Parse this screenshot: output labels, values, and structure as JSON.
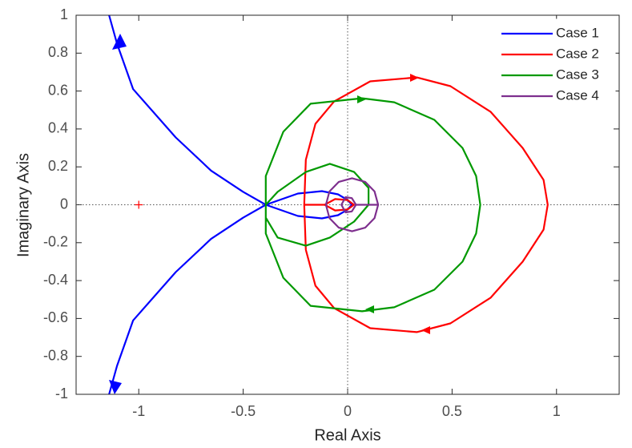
{
  "chart_data": {
    "type": "line",
    "xlabel": "Real Axis",
    "ylabel": "Imaginary Axis",
    "xlim": [
      -1.3,
      1.3
    ],
    "ylim": [
      -1,
      1
    ],
    "xticks": [
      -1,
      -0.5,
      0,
      0.5,
      1
    ],
    "yticks": [
      -1,
      -0.8,
      -0.6,
      -0.4,
      -0.2,
      0,
      0.2,
      0.4,
      0.6,
      0.8,
      1
    ],
    "legend": "top-right",
    "critical_point": {
      "x": -1,
      "y": 0,
      "color": "#ff0000"
    },
    "series": [
      {
        "name": "Case 1",
        "color": "#0000ff",
        "x": [
          -1.142,
          -1.104,
          -1.027,
          -0.823,
          -0.654,
          -0.5,
          -0.392,
          -0.238,
          -0.123,
          -0.046,
          0,
          0.02,
          0,
          -0.046,
          -0.123,
          -0.238,
          -0.392,
          -0.5,
          -0.654,
          -0.823,
          -1.027,
          -1.104,
          -1.142
        ],
        "values": [
          -1,
          -0.85,
          -0.61,
          -0.355,
          -0.18,
          -0.068,
          0,
          0.059,
          0.072,
          0.055,
          0.025,
          0,
          -0.025,
          -0.055,
          -0.072,
          -0.059,
          0,
          0.068,
          0.18,
          0.355,
          0.61,
          0.85,
          1
        ]
      },
      {
        "name": "Case 2",
        "color": "#ff0000",
        "x": [
          -0.208,
          -0.2,
          -0.154,
          -0.065,
          0.108,
          0.331,
          0.492,
          0.685,
          0.838,
          0.938,
          0.958,
          0.938,
          0.838,
          0.685,
          0.492,
          0.331,
          0.108,
          -0.065,
          -0.154,
          -0.2,
          -0.208,
          -0.11,
          -0.06,
          0,
          0.03,
          0,
          -0.06,
          -0.11
        ],
        "values": [
          0,
          0.237,
          0.427,
          0.545,
          0.651,
          0.672,
          0.626,
          0.49,
          0.3,
          0.131,
          0,
          -0.131,
          -0.3,
          -0.49,
          -0.626,
          -0.672,
          -0.651,
          -0.545,
          -0.427,
          -0.237,
          0,
          0,
          0.03,
          0.025,
          0,
          -0.025,
          -0.03,
          0
        ]
      },
      {
        "name": "Case 3",
        "color": "#009900",
        "x": [
          -0.392,
          -0.392,
          -0.308,
          -0.177,
          0.069,
          0.223,
          0.415,
          0.55,
          0.615,
          0.635,
          0.615,
          0.55,
          0.415,
          0.223,
          0.069,
          -0.177,
          -0.308,
          -0.392,
          -0.392,
          -0.335,
          -0.2,
          -0.085,
          0.031,
          0.1,
          0.1,
          0.031,
          -0.085,
          -0.2,
          -0.335,
          -0.392
        ],
        "values": [
          0,
          0.152,
          0.385,
          0.533,
          0.562,
          0.541,
          0.448,
          0.3,
          0.152,
          0,
          -0.152,
          -0.3,
          -0.448,
          -0.541,
          -0.562,
          -0.533,
          -0.385,
          -0.152,
          0,
          0.068,
          0.173,
          0.216,
          0.173,
          0.089,
          0,
          -0.089,
          -0.173,
          -0.216,
          -0.173,
          -0.068
        ]
      },
      {
        "name": "Case 4",
        "color": "#7e2f8e",
        "x": [
          0.146,
          0.129,
          0.084,
          0.021,
          -0.042,
          -0.087,
          -0.104,
          -0.087,
          -0.042,
          0.021,
          0.084,
          0.129,
          0.146,
          0.04,
          0.02,
          -0.01,
          -0.03,
          -0.01,
          0.02,
          0.04
        ],
        "values": [
          0,
          0.07,
          0.121,
          0.14,
          0.121,
          0.07,
          0,
          -0.07,
          -0.121,
          -0.14,
          -0.121,
          -0.07,
          0,
          0,
          0.035,
          0.04,
          0,
          -0.04,
          -0.035,
          0
        ]
      }
    ]
  }
}
